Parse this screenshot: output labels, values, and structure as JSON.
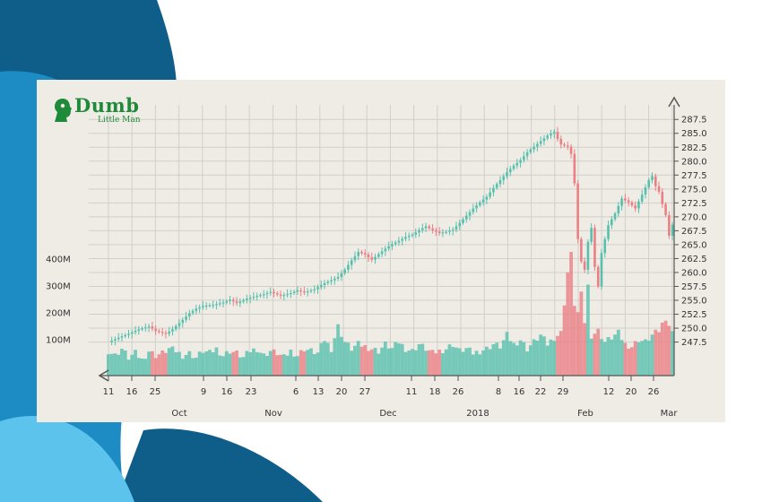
{
  "colors": {
    "bg_dark": "#0f5e8a",
    "bg_mid": "#1d8bc4",
    "bg_light": "#5cc3ec",
    "card": "#efece6",
    "grid": "#d2cfca",
    "up": "#57c0ad",
    "down": "#ea7f84",
    "axis": "#555555",
    "logo": "#1f8a3a"
  },
  "logo": {
    "word": "Dumb",
    "subtitle": "Little Man",
    "icon": "head-silhouette-icon"
  },
  "chart_data": {
    "type": "candlestick",
    "price_axis": {
      "position": "right",
      "ylim": [
        245.5,
        288.5
      ],
      "ticks": [
        "287.5",
        "285.0",
        "282.5",
        "280.0",
        "277.5",
        "275.0",
        "272.5",
        "270.0",
        "267.5",
        "265.0",
        "262.5",
        "260.0",
        "257.5",
        "255.0",
        "252.5",
        "250.0",
        "247.5"
      ]
    },
    "volume_axis": {
      "position": "left",
      "ylim": [
        0,
        460
      ],
      "unit": "M",
      "ticks": [
        "400M",
        "300M",
        "200M",
        "100M"
      ]
    },
    "x_day_ticks": [
      "11",
      "16",
      "25",
      "9",
      "16",
      "23",
      "6",
      "13",
      "20",
      "27",
      "11",
      "18",
      "26",
      "8",
      "16",
      "22",
      "29",
      "12",
      "20",
      "26"
    ],
    "x_month_labels": [
      "Oct",
      "Nov",
      "Dec",
      "2018",
      "Feb",
      "Mar"
    ],
    "grid": true,
    "price_path": [
      [
        0,
        247.5
      ],
      [
        3,
        248.3
      ],
      [
        6,
        249
      ],
      [
        9,
        249.8
      ],
      [
        12,
        250.3
      ],
      [
        14,
        249.5
      ],
      [
        17,
        249
      ],
      [
        19,
        249.8
      ],
      [
        22,
        251.5
      ],
      [
        24,
        252.7
      ],
      [
        26,
        253.5
      ],
      [
        28,
        254
      ],
      [
        31,
        254.2
      ],
      [
        34,
        254.6
      ],
      [
        36,
        255.1
      ],
      [
        38,
        254.5
      ],
      [
        41,
        255.3
      ],
      [
        44,
        255.8
      ],
      [
        46,
        256.1
      ],
      [
        48,
        256.5
      ],
      [
        51,
        255.8
      ],
      [
        54,
        256.3
      ],
      [
        56,
        256.8
      ],
      [
        58,
        256.4
      ],
      [
        61,
        257
      ],
      [
        64,
        258.1
      ],
      [
        66,
        258.6
      ],
      [
        68,
        259.2
      ],
      [
        70,
        260.5
      ],
      [
        72,
        262.2
      ],
      [
        74,
        263.7
      ],
      [
        76,
        263.2
      ],
      [
        78,
        262.3
      ],
      [
        80,
        263.3
      ],
      [
        82,
        264.3
      ],
      [
        84,
        265.1
      ],
      [
        86,
        265.7
      ],
      [
        88,
        266.4
      ],
      [
        90,
        266.8
      ],
      [
        92,
        267.6
      ],
      [
        94,
        268.3
      ],
      [
        96,
        267.6
      ],
      [
        98,
        267.1
      ],
      [
        100,
        267.3
      ],
      [
        102,
        267.7
      ],
      [
        104,
        268.9
      ],
      [
        106,
        270.2
      ],
      [
        108,
        271.5
      ],
      [
        110,
        272.6
      ],
      [
        112,
        273.6
      ],
      [
        114,
        275.2
      ],
      [
        116,
        276.6
      ],
      [
        118,
        278
      ],
      [
        120,
        279.2
      ],
      [
        122,
        280.2
      ],
      [
        124,
        281.6
      ],
      [
        126,
        282.6
      ],
      [
        128,
        283.6
      ],
      [
        130,
        284.6
      ],
      [
        132,
        285.3
      ],
      [
        133,
        284
      ],
      [
        134,
        283
      ],
      [
        136,
        282.6
      ],
      [
        137,
        281.3
      ],
      [
        138,
        276
      ],
      [
        139,
        266
      ],
      [
        140,
        262
      ],
      [
        141,
        260.5
      ],
      [
        142,
        265.5
      ],
      [
        143,
        268
      ],
      [
        144,
        261
      ],
      [
        145,
        257.5
      ],
      [
        146,
        263.5
      ],
      [
        147,
        266
      ],
      [
        148,
        268.5
      ],
      [
        150,
        270.6
      ],
      [
        152,
        273.3
      ],
      [
        154,
        272.6
      ],
      [
        156,
        271.5
      ],
      [
        158,
        274
      ],
      [
        160,
        276.6
      ],
      [
        161,
        277.3
      ],
      [
        162,
        275.5
      ],
      [
        163,
        274.5
      ],
      [
        164,
        272.3
      ],
      [
        165,
        270.3
      ],
      [
        166,
        266.6
      ],
      [
        167,
        268.6
      ]
    ],
    "volume_path": [
      [
        0,
        55
      ],
      [
        2,
        45
      ],
      [
        4,
        60
      ],
      [
        6,
        40
      ],
      [
        8,
        50
      ],
      [
        10,
        35
      ],
      [
        12,
        55
      ],
      [
        14,
        45
      ],
      [
        16,
        50
      ],
      [
        18,
        60
      ],
      [
        20,
        55
      ],
      [
        22,
        45
      ],
      [
        24,
        50
      ],
      [
        26,
        40
      ],
      [
        28,
        55
      ],
      [
        30,
        50
      ],
      [
        32,
        60
      ],
      [
        34,
        45
      ],
      [
        36,
        55
      ],
      [
        38,
        50
      ],
      [
        40,
        40
      ],
      [
        42,
        55
      ],
      [
        44,
        60
      ],
      [
        46,
        45
      ],
      [
        48,
        55
      ],
      [
        50,
        50
      ],
      [
        52,
        40
      ],
      [
        54,
        55
      ],
      [
        56,
        45
      ],
      [
        58,
        60
      ],
      [
        60,
        55
      ],
      [
        62,
        50
      ],
      [
        64,
        80
      ],
      [
        66,
        60
      ],
      [
        68,
        110
      ],
      [
        70,
        75
      ],
      [
        72,
        60
      ],
      [
        74,
        70
      ],
      [
        76,
        65
      ],
      [
        78,
        60
      ],
      [
        80,
        55
      ],
      [
        82,
        70
      ],
      [
        84,
        60
      ],
      [
        86,
        75
      ],
      [
        88,
        60
      ],
      [
        90,
        55
      ],
      [
        92,
        70
      ],
      [
        94,
        60
      ],
      [
        96,
        50
      ],
      [
        98,
        55
      ],
      [
        100,
        60
      ],
      [
        102,
        70
      ],
      [
        104,
        55
      ],
      [
        106,
        60
      ],
      [
        108,
        50
      ],
      [
        110,
        55
      ],
      [
        112,
        60
      ],
      [
        114,
        70
      ],
      [
        116,
        65
      ],
      [
        118,
        90
      ],
      [
        120,
        70
      ],
      [
        122,
        80
      ],
      [
        124,
        60
      ],
      [
        126,
        75
      ],
      [
        128,
        90
      ],
      [
        130,
        70
      ],
      [
        132,
        85
      ],
      [
        134,
        95
      ],
      [
        136,
        230
      ],
      [
        137,
        270
      ],
      [
        138,
        160
      ],
      [
        139,
        140
      ],
      [
        140,
        180
      ],
      [
        141,
        120
      ],
      [
        142,
        200
      ],
      [
        143,
        90
      ],
      [
        145,
        100
      ],
      [
        147,
        75
      ],
      [
        149,
        85
      ],
      [
        151,
        95
      ],
      [
        153,
        70
      ],
      [
        155,
        65
      ],
      [
        157,
        80
      ],
      [
        159,
        75
      ],
      [
        161,
        90
      ],
      [
        163,
        100
      ],
      [
        165,
        130
      ],
      [
        167,
        95
      ]
    ]
  }
}
